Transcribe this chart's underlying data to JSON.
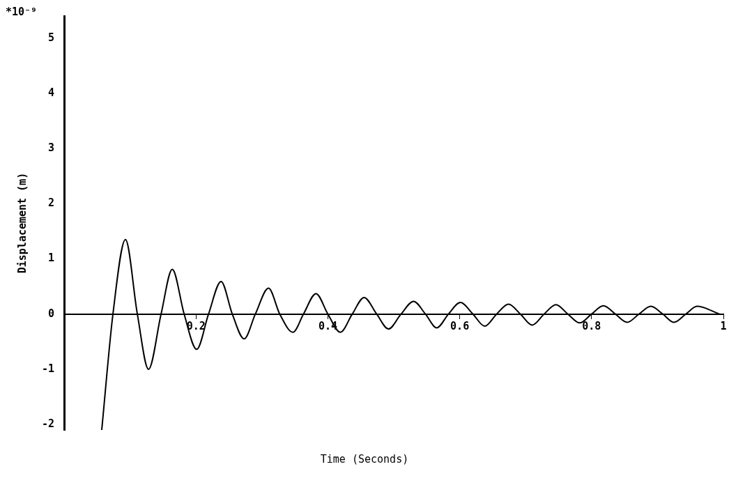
{
  "chart_data": {
    "type": "line",
    "xlabel": "Time (Seconds)",
    "ylabel": "Displacement (m)",
    "annotations": [
      "*10⁻⁹"
    ],
    "series": [
      {
        "color": "#000000",
        "x": [
          0.057,
          0.074,
          0.093,
          0.111,
          0.128,
          0.147,
          0.164,
          0.182,
          0.201,
          0.219,
          0.238,
          0.255,
          0.273,
          0.29,
          0.31,
          0.327,
          0.347,
          0.363,
          0.382,
          0.4,
          0.419,
          0.437,
          0.455,
          0.474,
          0.492,
          0.511,
          0.53,
          0.548,
          0.565,
          0.583,
          0.601,
          0.62,
          0.638,
          0.656,
          0.674,
          0.692,
          0.71,
          0.728,
          0.746,
          0.764,
          0.782,
          0.8,
          0.818,
          0.836,
          0.854,
          0.872,
          0.89,
          0.908,
          0.925,
          0.943,
          0.96,
          0.994
        ],
        "values": [
          -2.1,
          0,
          1.35,
          0,
          -1.0,
          0,
          0.81,
          0,
          -0.64,
          0,
          0.59,
          0,
          -0.45,
          0,
          0.47,
          0,
          -0.33,
          0,
          0.37,
          0,
          -0.33,
          0,
          0.3,
          0,
          -0.27,
          0,
          0.23,
          0,
          -0.25,
          0,
          0.21,
          0,
          -0.22,
          0,
          0.18,
          0,
          -0.2,
          0,
          0.17,
          0,
          -0.16,
          0,
          0.15,
          0,
          -0.15,
          0,
          0.14,
          0,
          -0.15,
          0,
          0.14,
          0
        ]
      }
    ],
    "xlim": [
      0,
      1
    ],
    "xticks": [
      {
        "value": 0,
        "label": null
      },
      0.2,
      0.4,
      0.6,
      0.8,
      1
    ],
    "ylim": [
      -2.1,
      5.4
    ],
    "yticks": [
      -2,
      -1,
      0,
      1,
      2,
      3,
      4,
      5
    ],
    "grid": false,
    "legend": false,
    "marker": "none",
    "line_style": "solid"
  }
}
